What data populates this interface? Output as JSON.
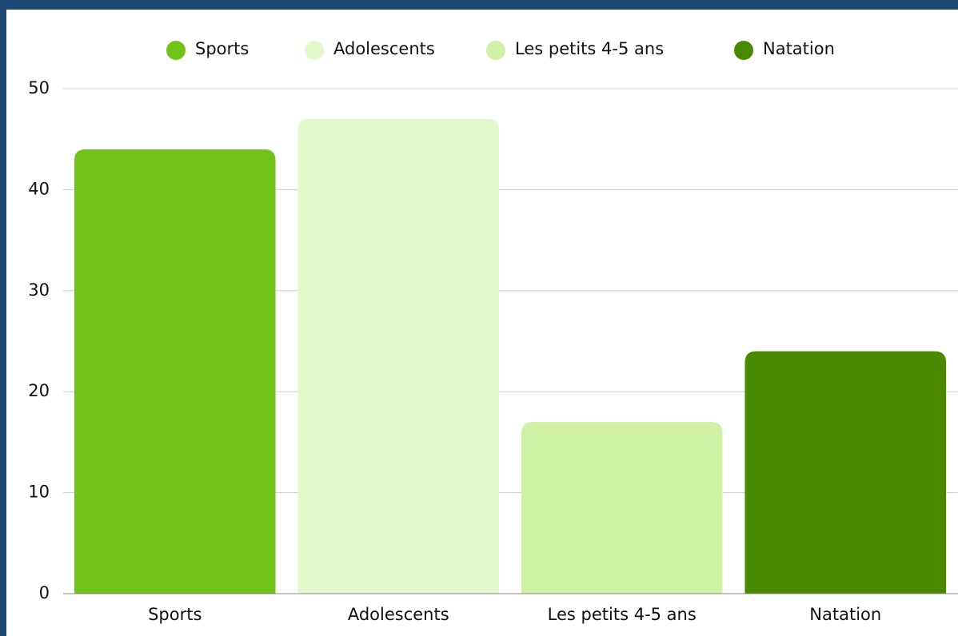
{
  "chart_data": {
    "type": "bar",
    "categories": [
      "Sports",
      "Adolescents",
      "Les petits 4-5 ans",
      "Natation"
    ],
    "values": [
      44,
      47,
      17,
      24
    ],
    "colors": [
      "#72c318",
      "#e2f8cb",
      "#cff1a5",
      "#4a8a00"
    ],
    "ylim": [
      0,
      50
    ],
    "yticks": [
      0,
      10,
      20,
      30,
      40,
      50
    ],
    "grid": true,
    "legend": "top"
  }
}
